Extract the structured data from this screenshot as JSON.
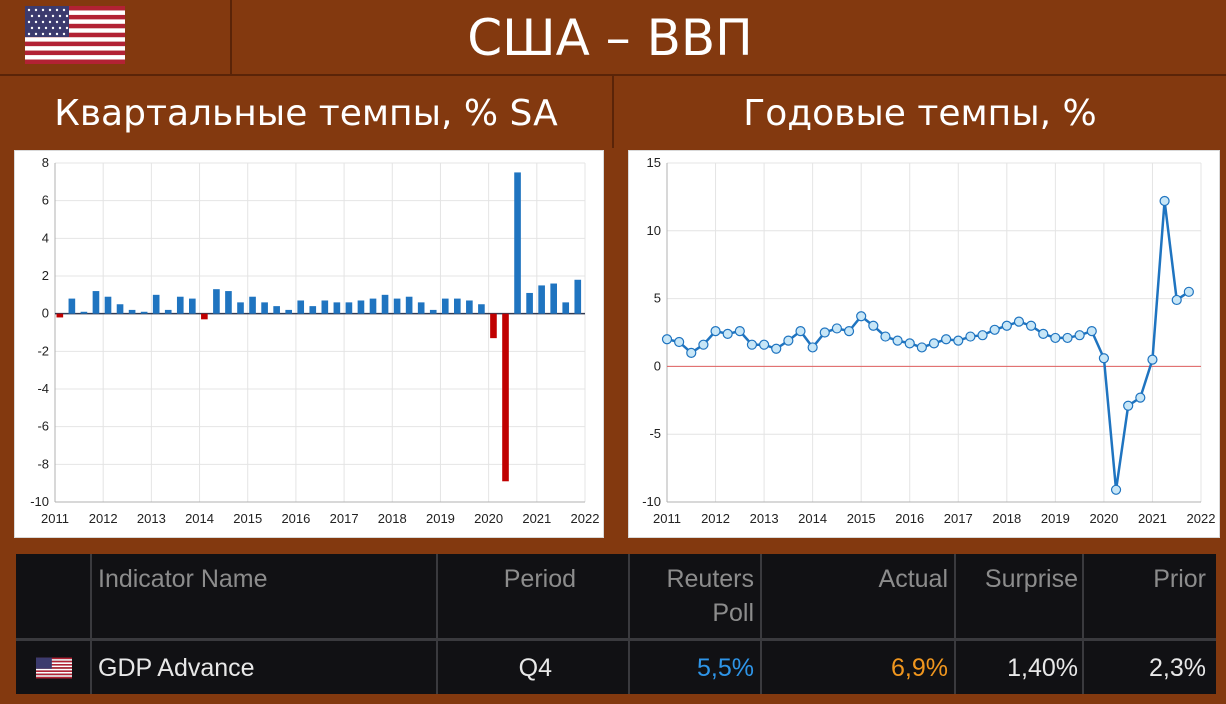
{
  "header": {
    "title": "США – ВВП",
    "flag_icon": "us-flag-icon"
  },
  "panels": {
    "left_title": "Квартальные темпы, % SA",
    "right_title": "Годовые темпы, %"
  },
  "colors": {
    "background": "#83390f",
    "bar_positive": "#1f74c0",
    "bar_negative": "#c00000",
    "line": "#1f74c0",
    "marker_fill": "#c7e6f7",
    "zero_line": "#e06060",
    "reuters_poll": "#2e95e8",
    "actual": "#f0961e"
  },
  "chart_data": [
    {
      "type": "bar",
      "title": "Квартальные темпы, % SA",
      "x_tick_labels": [
        "2011",
        "2012",
        "2013",
        "2014",
        "2015",
        "2016",
        "2017",
        "2018",
        "2019",
        "2020",
        "2021",
        "2022"
      ],
      "x_start": 2011.0,
      "x_end": 2022.0,
      "x_step": 0.25,
      "values": [
        -0.2,
        0.8,
        0.1,
        1.2,
        0.9,
        0.5,
        0.2,
        0.1,
        1.0,
        0.2,
        0.9,
        0.8,
        -0.3,
        1.3,
        1.2,
        0.6,
        0.9,
        0.6,
        0.4,
        0.2,
        0.7,
        0.4,
        0.7,
        0.6,
        0.6,
        0.7,
        0.8,
        1.0,
        0.8,
        0.9,
        0.6,
        0.2,
        0.8,
        0.8,
        0.7,
        0.5,
        -1.3,
        -8.9,
        7.5,
        1.1,
        1.5,
        1.6,
        0.6,
        1.8
      ],
      "ylim": [
        -10,
        8
      ],
      "y_ticks": [
        8,
        6,
        4,
        2,
        0,
        -2,
        -4,
        -6,
        -8,
        -10
      ],
      "grid": true
    },
    {
      "type": "line",
      "title": "Годовые темпы, %",
      "x_tick_labels": [
        "2011",
        "2012",
        "2013",
        "2014",
        "2015",
        "2016",
        "2017",
        "2018",
        "2019",
        "2020",
        "2021",
        "2022"
      ],
      "x_start": 2011.0,
      "x_end": 2022.0,
      "x_step": 0.25,
      "values": [
        2.0,
        1.8,
        1.0,
        1.6,
        2.6,
        2.4,
        2.6,
        1.6,
        1.6,
        1.3,
        1.9,
        2.6,
        1.4,
        2.5,
        2.8,
        2.6,
        3.7,
        3.0,
        2.2,
        1.9,
        1.7,
        1.4,
        1.7,
        2.0,
        1.9,
        2.2,
        2.3,
        2.7,
        3.0,
        3.3,
        3.0,
        2.4,
        2.1,
        2.1,
        2.3,
        2.6,
        0.6,
        -9.1,
        -2.9,
        -2.3,
        0.5,
        12.2,
        4.9,
        5.5
      ],
      "ylim": [
        -10,
        15
      ],
      "y_ticks": [
        15,
        10,
        5,
        0,
        -5,
        -10
      ],
      "grid": true
    }
  ],
  "table": {
    "headers": {
      "indicator": "Indicator Name",
      "period": "Period",
      "reuters_line1": "Reuters",
      "reuters_line2": "Poll",
      "actual": "Actual",
      "surprise": "Surprise",
      "prior": "Prior"
    },
    "row": {
      "flag_icon": "us-flag-icon",
      "indicator": "GDP Advance",
      "period": "Q4",
      "reuters_poll": "5,5%",
      "actual": "6,9%",
      "surprise": "1,40%",
      "prior": "2,3%"
    }
  }
}
